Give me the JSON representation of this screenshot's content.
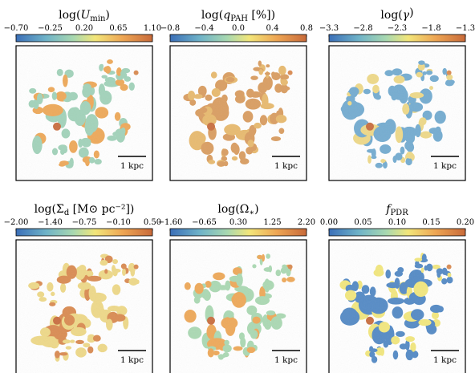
{
  "figure": {
    "colormap": [
      "#3b6fb8",
      "#6fb3c8",
      "#a8d8b0",
      "#f2e67a",
      "#eea654",
      "#c86a3a"
    ],
    "panels": [
      {
        "id": "umin",
        "title": "log(U_min)",
        "title_main": "log(",
        "title_sym": "U",
        "title_sub": "min",
        "title_end": ")",
        "ticks": [
          "−0.70",
          "−0.25",
          "0.20",
          "0.65",
          "1.10"
        ],
        "scalebar": "1 kpc",
        "map_color": "#9fd1b8",
        "accent": "#eea654"
      },
      {
        "id": "qpah",
        "title": "log(q_PAH [%])",
        "title_main": "log(",
        "title_sym": "q",
        "title_sub": "PAH",
        "title_end": " [%])",
        "ticks": [
          "−0.8",
          "−0.4",
          "0.0",
          "0.4",
          "0.8"
        ],
        "scalebar": "1 kpc",
        "map_color": "#d99a5c",
        "accent": "#e7b86a"
      },
      {
        "id": "gamma",
        "title": "log(γ)",
        "title_main": "log(",
        "title_sym": "γ",
        "title_sub": "",
        "title_end": ")",
        "ticks": [
          "−3.3",
          "−2.8",
          "−2.3",
          "−1.8",
          "−1.3"
        ],
        "scalebar": "1 kpc",
        "map_color": "#6fa9cf",
        "accent": "#eed784"
      },
      {
        "id": "sigma",
        "title": "log(Σ_d [M_⊙ pc^−2])",
        "title_main": "log(Σ",
        "title_sym": "",
        "title_sub": "d",
        "title_end": " [M⊙ pc⁻²])",
        "ticks": [
          "−2.00",
          "−1.40",
          "−0.75",
          "−0.10",
          "0.50"
        ],
        "scalebar": "1 kpc",
        "map_color": "#eed784",
        "accent": "#d9874c"
      },
      {
        "id": "omega",
        "title": "log(Ω_*)",
        "title_main": "log(Ω",
        "title_sym": "",
        "title_sub": "∗",
        "title_end": ")",
        "ticks": [
          "−1.60",
          "−0.65",
          "0.30",
          "1.25",
          "2.20"
        ],
        "scalebar": "1 kpc",
        "map_color": "#a8d8b0",
        "accent": "#eea654"
      },
      {
        "id": "fpdr",
        "title": "f_PDR",
        "title_main": "",
        "title_sym": "f",
        "title_sub": "PDR",
        "title_end": "",
        "ticks": [
          "0.00",
          "0.05",
          "0.10",
          "0.15",
          "0.20"
        ],
        "scalebar": "1 kpc",
        "map_color": "#4f86c4",
        "accent": "#f2e67a"
      }
    ]
  }
}
